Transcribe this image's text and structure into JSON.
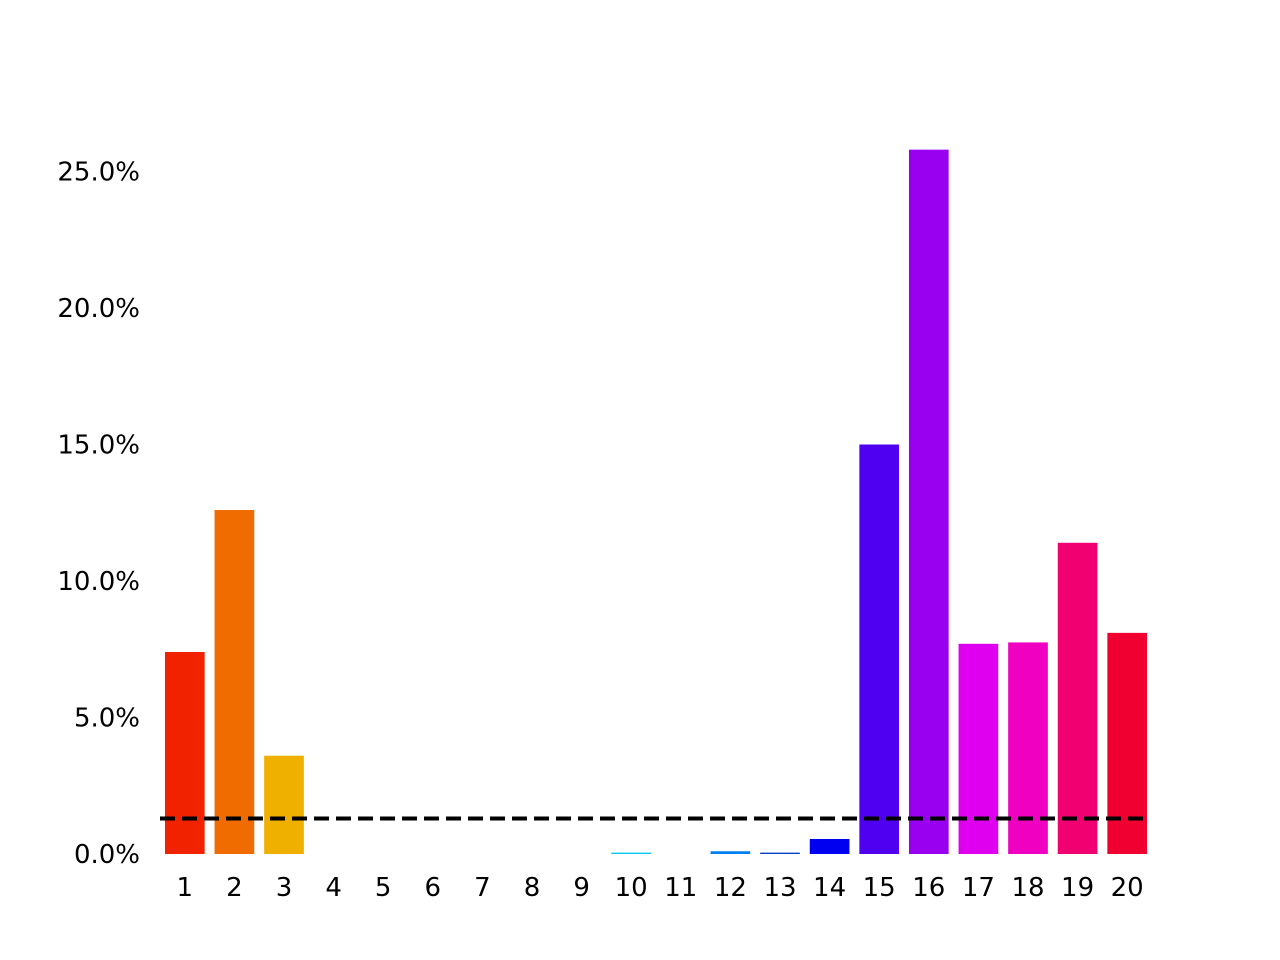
{
  "chart_data": {
    "type": "bar",
    "categories": [
      "1",
      "2",
      "3",
      "4",
      "5",
      "6",
      "7",
      "8",
      "9",
      "10",
      "11",
      "12",
      "13",
      "14",
      "15",
      "16",
      "17",
      "18",
      "19",
      "20"
    ],
    "values": [
      7.4,
      12.6,
      3.6,
      0,
      0,
      0,
      0,
      0,
      0,
      0.05,
      0,
      0.1,
      0.05,
      0.55,
      15.0,
      25.8,
      7.7,
      7.75,
      11.4,
      8.1
    ],
    "colors": [
      "#f12200",
      "#f06b00",
      "#f0b000",
      "#ffffff",
      "#ffffff",
      "#ffffff",
      "#ffffff",
      "#ffffff",
      "#ffffff",
      "#00c8f0",
      "#ffffff",
      "#0080f0",
      "#0040c0",
      "#0000f0",
      "#5000f0",
      "#9a00f0",
      "#e000f0",
      "#f000c0",
      "#f00070",
      "#f00030"
    ],
    "ylim": [
      0,
      27
    ],
    "yticks": [
      {
        "value": 0,
        "label": "0.0%"
      },
      {
        "value": 5,
        "label": "5.0%"
      },
      {
        "value": 10,
        "label": "10.0%"
      },
      {
        "value": 15,
        "label": "15.0%"
      },
      {
        "value": 20,
        "label": "20.0%"
      },
      {
        "value": 25,
        "label": "25.0%"
      }
    ],
    "reference_line": {
      "value": 1.3,
      "style": "dashed",
      "color": "#000000"
    },
    "title": "",
    "xlabel": "",
    "ylabel": "",
    "grid": false,
    "legend": "none"
  }
}
